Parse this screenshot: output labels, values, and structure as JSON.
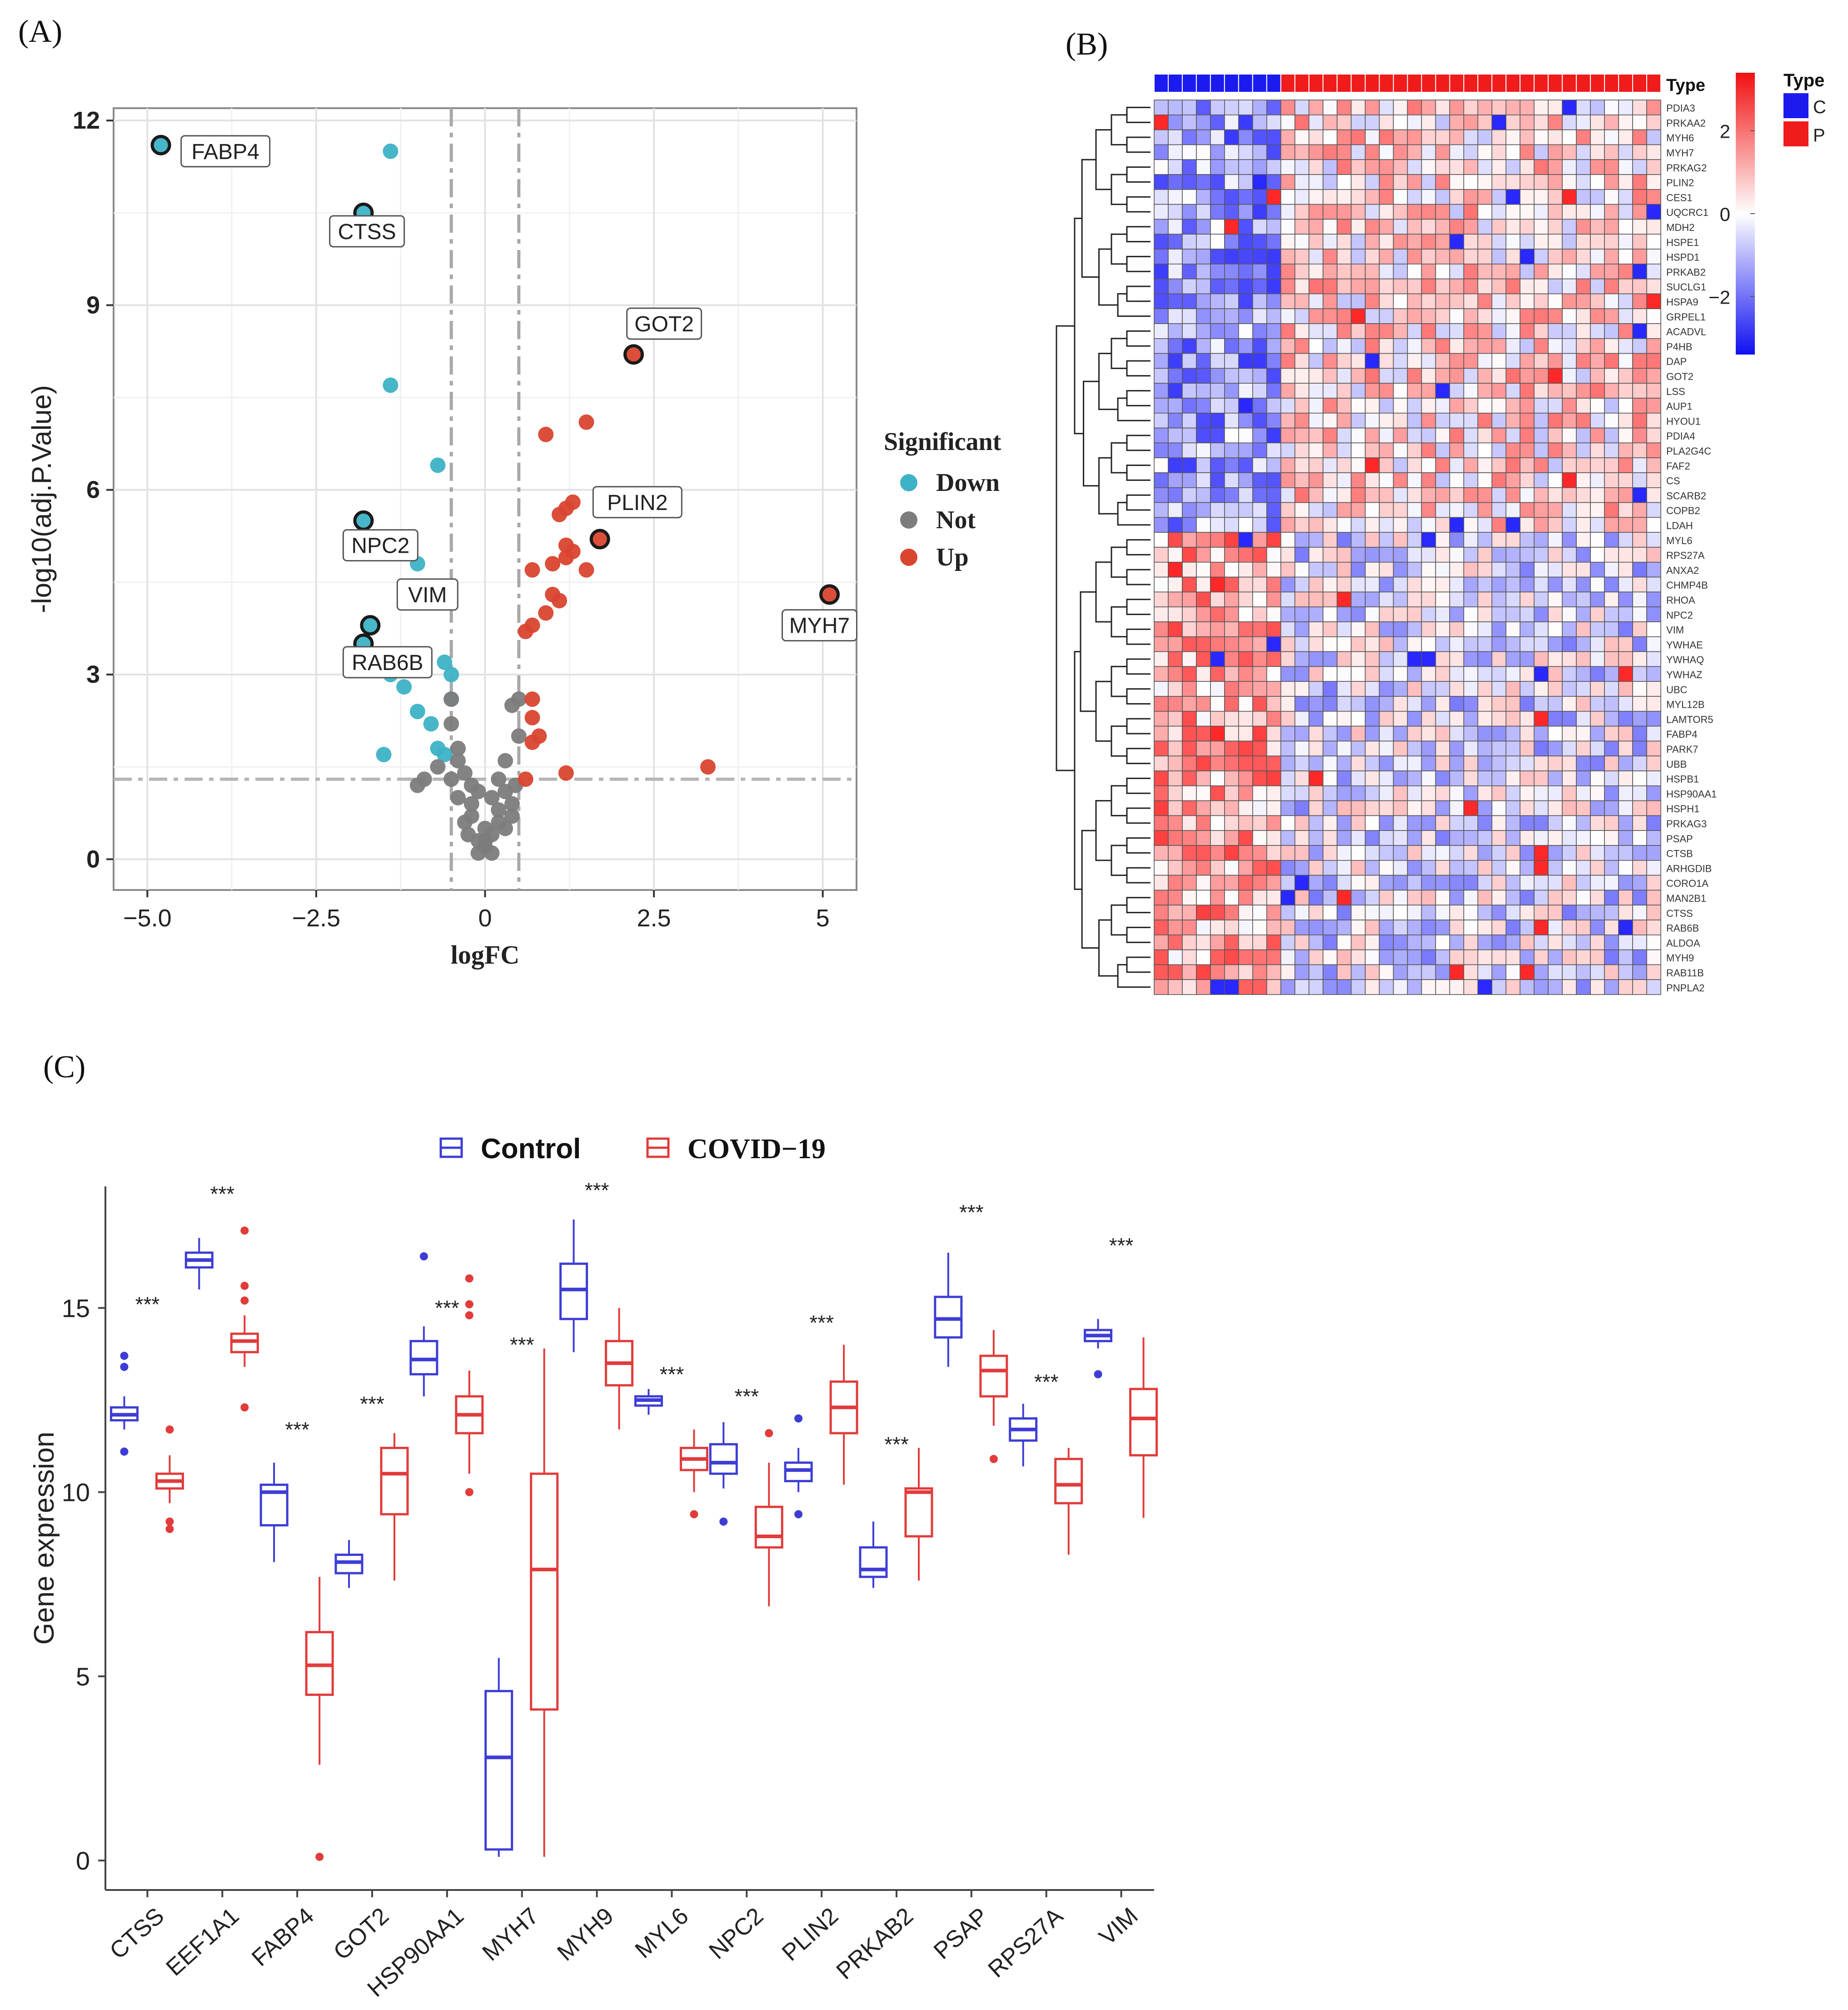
{
  "panels": {
    "a": "(A)",
    "b": "(B)",
    "c": "(C)"
  },
  "chart_data": [
    {
      "panel": "A",
      "type": "scatter",
      "title": "",
      "xlabel": "logFC",
      "ylabel": "-log10(adj.P.Value)",
      "xlim": [
        -5.5,
        5.5
      ],
      "ylim": [
        -0.5,
        12.2
      ],
      "xticks": [
        -5.0,
        -2.5,
        0,
        2.5,
        5
      ],
      "xtick_labels": [
        "−5.0",
        "−2.5",
        "0",
        "2.5",
        "5"
      ],
      "yticks": [
        0,
        3,
        6,
        9,
        12
      ],
      "ytick_labels": [
        "0",
        "3",
        "6",
        "9",
        "12"
      ],
      "grid": true,
      "vlines": [
        -0.5,
        0.5
      ],
      "hline": 1.3,
      "legend": {
        "title": "Significant",
        "position": "right",
        "entries": [
          {
            "label": "Down",
            "color": "#3eb2c6"
          },
          {
            "label": "Not",
            "color": "#7c7c7c"
          },
          {
            "label": "Up",
            "color": "#d9452f"
          }
        ]
      },
      "series": [
        {
          "name": "Down",
          "color": "#3eb2c6",
          "points": [
            [
              -4.8,
              11.6
            ],
            [
              -1.4,
              11.5
            ],
            [
              -1.8,
              10.5
            ],
            [
              -1.4,
              7.7
            ],
            [
              -0.7,
              6.4
            ],
            [
              -1.8,
              5.5
            ],
            [
              -1.0,
              4.8
            ],
            [
              -0.6,
              4.3
            ],
            [
              -0.6,
              4.2
            ],
            [
              -1.7,
              3.8
            ],
            [
              -1.8,
              3.5
            ],
            [
              -0.6,
              3.2
            ],
            [
              -1.4,
              3.0
            ],
            [
              -0.5,
              3.0
            ],
            [
              -1.2,
              2.8
            ],
            [
              -0.5,
              2.6
            ],
            [
              -1.0,
              2.4
            ],
            [
              -0.8,
              2.2
            ],
            [
              -0.7,
              1.8
            ],
            [
              -0.6,
              1.7
            ],
            [
              -1.5,
              1.7
            ]
          ]
        },
        {
          "name": "Not",
          "color": "#7c7c7c",
          "points": [
            [
              -0.5,
              2.6
            ],
            [
              -0.5,
              2.2
            ],
            [
              -0.4,
              1.8
            ],
            [
              -0.4,
              1.6
            ],
            [
              -0.3,
              1.4
            ],
            [
              -0.5,
              1.3
            ],
            [
              -0.2,
              1.2
            ],
            [
              -0.1,
              1.1
            ],
            [
              0.1,
              1.0
            ],
            [
              0.3,
              1.1
            ],
            [
              0.4,
              0.9
            ],
            [
              0.2,
              0.8
            ],
            [
              -0.2,
              0.7
            ],
            [
              -0.3,
              0.6
            ],
            [
              0.0,
              0.5
            ],
            [
              0.1,
              0.4
            ],
            [
              -0.1,
              0.3
            ],
            [
              0.0,
              0.2
            ],
            [
              -0.1,
              0.1
            ],
            [
              0.1,
              0.1
            ],
            [
              0.2,
              0.6
            ],
            [
              0.3,
              0.5
            ],
            [
              0.4,
              0.7
            ],
            [
              0.45,
              1.2
            ],
            [
              0.5,
              2.6
            ],
            [
              0.4,
              2.5
            ],
            [
              0.5,
              2.0
            ],
            [
              0.3,
              1.6
            ],
            [
              -0.4,
              1.0
            ],
            [
              -0.2,
              0.9
            ],
            [
              -0.9,
              1.3
            ],
            [
              -1.0,
              1.2
            ],
            [
              -0.7,
              1.5
            ],
            [
              0.2,
              1.3
            ],
            [
              0.0,
              0.3
            ],
            [
              -0.25,
              0.4
            ]
          ]
        },
        {
          "name": "Up",
          "color": "#d9452f",
          "points": [
            [
              2.2,
              8.2
            ],
            [
              1.5,
              7.1
            ],
            [
              0.9,
              6.9
            ],
            [
              1.3,
              5.8
            ],
            [
              1.2,
              5.7
            ],
            [
              1.1,
              5.6
            ],
            [
              1.7,
              5.2
            ],
            [
              1.2,
              5.1
            ],
            [
              1.3,
              5.0
            ],
            [
              1.2,
              4.9
            ],
            [
              1.0,
              4.8
            ],
            [
              1.5,
              4.7
            ],
            [
              0.7,
              4.7
            ],
            [
              5.1,
              4.3
            ],
            [
              1.0,
              4.3
            ],
            [
              1.1,
              4.2
            ],
            [
              0.9,
              4.0
            ],
            [
              0.7,
              3.8
            ],
            [
              0.6,
              3.7
            ],
            [
              3.3,
              1.5
            ],
            [
              1.2,
              1.4
            ],
            [
              0.7,
              2.6
            ],
            [
              0.7,
              2.3
            ],
            [
              0.8,
              2.0
            ],
            [
              0.7,
              1.9
            ],
            [
              0.6,
              1.3
            ]
          ]
        }
      ],
      "annotations": [
        {
          "label": "FABP4",
          "x": -4.8,
          "y": 11.6,
          "box": [
            -4.5,
            11.5
          ]
        },
        {
          "label": "CTSS",
          "x": -1.8,
          "y": 10.5,
          "box": [
            -2.3,
            10.2
          ]
        },
        {
          "label": "GOT2",
          "x": 2.2,
          "y": 8.2,
          "box": [
            2.1,
            8.7
          ]
        },
        {
          "label": "PLIN2",
          "x": 1.7,
          "y": 5.2,
          "box": [
            1.6,
            5.8
          ]
        },
        {
          "label": "NPC2",
          "x": -1.8,
          "y": 5.5,
          "box": [
            -2.1,
            5.1
          ]
        },
        {
          "label": "VIM",
          "x": -1.7,
          "y": 3.8,
          "box": [
            -1.3,
            4.3
          ]
        },
        {
          "label": "MYH7",
          "x": 5.1,
          "y": 4.3,
          "box": [
            4.4,
            3.8
          ]
        },
        {
          "label": "RAB6B",
          "x": -1.8,
          "y": 3.5,
          "box": [
            -2.1,
            3.2
          ]
        }
      ]
    },
    {
      "panel": "B",
      "type": "heatmap",
      "title": "",
      "annotation_label": "Type",
      "colorbar_ticks": [
        2,
        0,
        -2
      ],
      "colorbar_tick_labels": [
        "2",
        "0",
        "−2"
      ],
      "legend": {
        "title": "Type",
        "position": "top-right",
        "entries": [
          {
            "label": "C",
            "color": "#1b1bf0"
          },
          {
            "label": "P",
            "color": "#f01b1b"
          }
        ]
      },
      "n_columns": 36,
      "n_control_columns": 9,
      "rows": [
        "PDIA3",
        "PRKAA2",
        "MYH6",
        "MYH7",
        "PRKAG2",
        "PLIN2",
        "CES1",
        "UQCRC1",
        "MDH2",
        "HSPE1",
        "HSPD1",
        "PRKAB2",
        "SUCLG1",
        "HSPA9",
        "GRPEL1",
        "ACADVL",
        "P4HB",
        "DAP",
        "GOT2",
        "LSS",
        "AUP1",
        "HYOU1",
        "PDIA4",
        "PLA2G4C",
        "FAF2",
        "CS",
        "SCARB2",
        "COPB2",
        "LDAH",
        "MYL6",
        "RPS27A",
        "ANXA2",
        "CHMP4B",
        "RHOA",
        "NPC2",
        "VIM",
        "YWHAE",
        "YWHAQ",
        "YWHAZ",
        "UBC",
        "MYL12B",
        "LAMTOR5",
        "FABP4",
        "PARK7",
        "UBB",
        "HSPB1",
        "HSP90AA1",
        "HSPH1",
        "PRKAG3",
        "PSAP",
        "CTSB",
        "ARHGDIB",
        "CORO1A",
        "MAN2B1",
        "CTSS",
        "RAB6B",
        "ALDOA",
        "MYH9",
        "RAB11B",
        "PNPLA2"
      ],
      "row_group_split": 29
    },
    {
      "panel": "C",
      "type": "box",
      "title": "",
      "xlabel": "",
      "ylabel": "Gene expression",
      "ylim": [
        -0.8,
        18.3
      ],
      "yticks": [
        0,
        5,
        10,
        15
      ],
      "ytick_labels": [
        "0",
        "5",
        "10",
        "15"
      ],
      "legend": {
        "position": "top",
        "entries": [
          {
            "label": "Control",
            "color": "#3d3dd6"
          },
          {
            "label": "COVID−19",
            "color": "#e23b3b"
          }
        ]
      },
      "categories": [
        "CTSS",
        "EEF1A1",
        "FABP4",
        "GOT2",
        "HSP90AA1",
        "MYH7",
        "MYH9",
        "MYL6",
        "NPC2",
        "PLIN2",
        "PRKAB2",
        "PSAP",
        "RPS27A",
        "VIM"
      ],
      "significance": [
        "***",
        "***",
        "***",
        "***",
        "***",
        "***",
        "***",
        "***",
        "***",
        "***",
        "***",
        "***",
        "***",
        "***"
      ],
      "sig_y": [
        14.9,
        17.9,
        11.5,
        12.2,
        14.8,
        13.8,
        18.0,
        13.0,
        12.4,
        14.4,
        11.1,
        17.4,
        12.8,
        16.5
      ],
      "series": [
        {
          "name": "Control",
          "boxes": [
            {
              "wlo": 11.7,
              "q1": 11.95,
              "med": 12.1,
              "q3": 12.3,
              "whi": 12.6,
              "out": [
                13.7,
                13.4,
                11.1
              ]
            },
            {
              "wlo": 15.5,
              "q1": 16.1,
              "med": 16.3,
              "q3": 16.5,
              "whi": 16.9,
              "out": []
            },
            {
              "wlo": 8.1,
              "q1": 9.1,
              "med": 10.0,
              "q3": 10.2,
              "whi": 10.8,
              "out": []
            },
            {
              "wlo": 7.4,
              "q1": 7.8,
              "med": 8.1,
              "q3": 8.3,
              "whi": 8.7,
              "out": []
            },
            {
              "wlo": 12.6,
              "q1": 13.2,
              "med": 13.6,
              "q3": 14.1,
              "whi": 14.5,
              "out": [
                16.4
              ]
            },
            {
              "wlo": 0.1,
              "q1": 0.3,
              "med": 2.8,
              "q3": 4.6,
              "whi": 5.5,
              "out": []
            },
            {
              "wlo": 13.8,
              "q1": 14.7,
              "med": 15.5,
              "q3": 16.2,
              "whi": 17.4,
              "out": []
            },
            {
              "wlo": 12.1,
              "q1": 12.35,
              "med": 12.5,
              "q3": 12.6,
              "whi": 12.8,
              "out": []
            },
            {
              "wlo": 10.1,
              "q1": 10.5,
              "med": 10.8,
              "q3": 11.3,
              "whi": 11.9,
              "out": [
                9.2
              ]
            },
            {
              "wlo": 10.0,
              "q1": 10.3,
              "med": 10.6,
              "q3": 10.8,
              "whi": 11.2,
              "out": [
                12.0,
                9.4
              ]
            },
            {
              "wlo": 7.4,
              "q1": 7.7,
              "med": 7.9,
              "q3": 8.5,
              "whi": 9.2,
              "out": []
            },
            {
              "wlo": 13.4,
              "q1": 14.2,
              "med": 14.7,
              "q3": 15.3,
              "whi": 16.5,
              "out": []
            },
            {
              "wlo": 10.7,
              "q1": 11.4,
              "med": 11.7,
              "q3": 12.0,
              "whi": 12.4,
              "out": []
            },
            {
              "wlo": 13.9,
              "q1": 14.1,
              "med": 14.25,
              "q3": 14.4,
              "whi": 14.7,
              "out": [
                13.2
              ]
            }
          ]
        },
        {
          "name": "COVID−19",
          "boxes": [
            {
              "wlo": 9.7,
              "q1": 10.1,
              "med": 10.3,
              "q3": 10.5,
              "whi": 11.0,
              "out": [
                11.7,
                9.2,
                9.0
              ]
            },
            {
              "wlo": 13.4,
              "q1": 13.8,
              "med": 14.1,
              "q3": 14.3,
              "whi": 14.8,
              "out": [
                17.1,
                15.6,
                15.2,
                12.3
              ]
            },
            {
              "wlo": 2.6,
              "q1": 4.5,
              "med": 5.3,
              "q3": 6.2,
              "whi": 7.7,
              "out": [
                0.1
              ]
            },
            {
              "wlo": 7.6,
              "q1": 9.4,
              "med": 10.5,
              "q3": 11.2,
              "whi": 11.6,
              "out": []
            },
            {
              "wlo": 10.5,
              "q1": 11.6,
              "med": 12.1,
              "q3": 12.6,
              "whi": 13.3,
              "out": [
                15.8,
                15.1,
                14.8,
                10.0
              ]
            },
            {
              "wlo": 0.1,
              "q1": 4.1,
              "med": 7.9,
              "q3": 10.5,
              "whi": 13.9,
              "out": []
            },
            {
              "wlo": 11.7,
              "q1": 12.9,
              "med": 13.5,
              "q3": 14.1,
              "whi": 15.0,
              "out": []
            },
            {
              "wlo": 10.0,
              "q1": 10.6,
              "med": 10.9,
              "q3": 11.2,
              "whi": 11.7,
              "out": [
                9.4
              ]
            },
            {
              "wlo": 6.9,
              "q1": 8.5,
              "med": 8.8,
              "q3": 9.6,
              "whi": 10.8,
              "out": [
                11.6
              ]
            },
            {
              "wlo": 10.2,
              "q1": 11.6,
              "med": 12.3,
              "q3": 13.0,
              "whi": 14.0,
              "out": []
            },
            {
              "wlo": 7.6,
              "q1": 8.8,
              "med": 10.0,
              "q3": 10.1,
              "whi": 11.2,
              "out": []
            },
            {
              "wlo": 11.8,
              "q1": 12.6,
              "med": 13.3,
              "q3": 13.7,
              "whi": 14.4,
              "out": [
                10.9
              ]
            },
            {
              "wlo": 8.3,
              "q1": 9.7,
              "med": 10.2,
              "q3": 10.9,
              "whi": 11.2,
              "out": []
            },
            {
              "wlo": 9.3,
              "q1": 11.0,
              "med": 12.0,
              "q3": 12.8,
              "whi": 14.2,
              "out": []
            }
          ]
        }
      ]
    }
  ]
}
